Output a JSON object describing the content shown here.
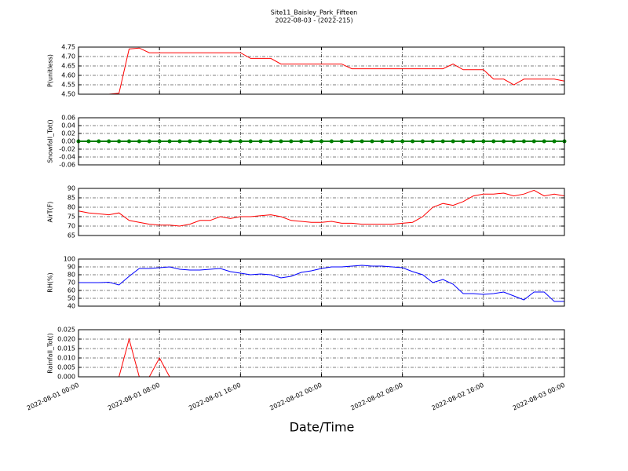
{
  "chart_data": [
    {
      "type": "line",
      "title": "Site11_Baisley_Park_Fifteen",
      "subtitle": "2022-08-03 - (2022-215)",
      "ylabel": "P(unitless)",
      "grid": true,
      "marker": false,
      "xlim": [
        "2022-08-01 00:00",
        "2022-08-03 00:00"
      ],
      "xticks": [
        "2022-08-01 00:00",
        "2022-08-01 08:00",
        "2022-08-01 16:00",
        "2022-08-02 00:00",
        "2022-08-02 08:00",
        "2022-08-02 16:00",
        "2022-08-03 00:00"
      ],
      "ylim": [
        4.5,
        4.75
      ],
      "yticks": [
        {
          "value": 4.5,
          "label": "4.50"
        },
        {
          "value": 4.55,
          "label": "4.55"
        },
        {
          "value": 4.6,
          "label": "4.60"
        },
        {
          "value": 4.65,
          "label": "4.65"
        },
        {
          "value": 4.7,
          "label": "4.70"
        },
        {
          "value": 4.75,
          "label": "4.75"
        }
      ],
      "series": [
        {
          "name": "P",
          "color": "#ff0000",
          "values": [
            4.5,
            4.5,
            4.5,
            4.5,
            4.505,
            4.74,
            4.745,
            4.72,
            4.72,
            4.72,
            4.72,
            4.72,
            4.72,
            4.72,
            4.72,
            4.72,
            4.72,
            4.69,
            4.69,
            4.69,
            4.66,
            4.66,
            4.66,
            4.66,
            4.66,
            4.66,
            4.66,
            4.635,
            4.635,
            4.635,
            4.635,
            4.635,
            4.635,
            4.635,
            4.635,
            4.635,
            4.635,
            4.66,
            4.63,
            4.63,
            4.63,
            4.58,
            4.58,
            4.55,
            4.58,
            4.58,
            4.58,
            4.58,
            4.57
          ]
        }
      ]
    },
    {
      "type": "line",
      "ylabel": "Snowfall_Tot()",
      "grid": true,
      "marker": true,
      "xlim": [
        "2022-08-01 00:00",
        "2022-08-03 00:00"
      ],
      "xticks": [
        "2022-08-01 00:00",
        "2022-08-01 08:00",
        "2022-08-01 16:00",
        "2022-08-02 00:00",
        "2022-08-02 08:00",
        "2022-08-02 16:00",
        "2022-08-03 00:00"
      ],
      "ylim": [
        -0.06,
        0.06
      ],
      "yticks": [
        {
          "value": -0.06,
          "label": "-0.06"
        },
        {
          "value": -0.04,
          "label": "-0.04"
        },
        {
          "value": -0.02,
          "label": "-0.02"
        },
        {
          "value": 0,
          "label": "0.00"
        },
        {
          "value": 0.02,
          "label": "0.02"
        },
        {
          "value": 0.04,
          "label": "0.04"
        },
        {
          "value": 0.06,
          "label": "0.06"
        }
      ],
      "series": [
        {
          "name": "Snowfall_Tot",
          "color": "#008000",
          "values": [
            0,
            0,
            0,
            0,
            0,
            0,
            0,
            0,
            0,
            0,
            0,
            0,
            0,
            0,
            0,
            0,
            0,
            0,
            0,
            0,
            0,
            0,
            0,
            0,
            0,
            0,
            0,
            0,
            0,
            0,
            0,
            0,
            0,
            0,
            0,
            0,
            0,
            0,
            0,
            0,
            0,
            0,
            0,
            0,
            0,
            0,
            0,
            0,
            0
          ]
        }
      ]
    },
    {
      "type": "line",
      "ylabel": "AirT(F)",
      "grid": true,
      "marker": false,
      "xlim": [
        "2022-08-01 00:00",
        "2022-08-03 00:00"
      ],
      "xticks": [
        "2022-08-01 00:00",
        "2022-08-01 08:00",
        "2022-08-01 16:00",
        "2022-08-02 00:00",
        "2022-08-02 08:00",
        "2022-08-02 16:00",
        "2022-08-03 00:00"
      ],
      "ylim": [
        65,
        90
      ],
      "yticks": [
        65,
        70,
        75,
        80,
        85,
        90
      ],
      "series": [
        {
          "name": "AirT",
          "color": "#ff0000",
          "values": [
            78,
            77,
            76.5,
            76,
            77,
            73,
            72,
            71,
            70.5,
            70.5,
            70,
            71,
            73,
            73,
            75,
            74,
            75,
            75,
            75.5,
            76,
            75,
            73,
            72.5,
            72,
            72,
            72.5,
            71.5,
            71.5,
            71,
            71,
            71,
            71,
            71.5,
            72,
            75,
            80,
            82,
            81,
            83,
            86,
            87,
            87,
            87.5,
            86,
            87,
            89,
            86,
            87,
            86
          ]
        }
      ]
    },
    {
      "type": "line",
      "ylabel": "RH(%)",
      "grid": true,
      "marker": false,
      "xlim": [
        "2022-08-01 00:00",
        "2022-08-03 00:00"
      ],
      "xticks": [
        "2022-08-01 00:00",
        "2022-08-01 08:00",
        "2022-08-01 16:00",
        "2022-08-02 00:00",
        "2022-08-02 08:00",
        "2022-08-02 16:00",
        "2022-08-03 00:00"
      ],
      "ylim": [
        40,
        100
      ],
      "yticks": [
        40,
        50,
        60,
        70,
        80,
        90,
        100
      ],
      "series": [
        {
          "name": "RH",
          "color": "#0000ff",
          "values": [
            70,
            70,
            70,
            70.5,
            67,
            78,
            88,
            88,
            89,
            90,
            87,
            86,
            86,
            87,
            88,
            84,
            82,
            80,
            81,
            80,
            76,
            78,
            83,
            85,
            88,
            90,
            90,
            91,
            92,
            91,
            91,
            90,
            89,
            84,
            80,
            70,
            74,
            68,
            56,
            56,
            55,
            56,
            58,
            53,
            48,
            58,
            58,
            46,
            46
          ]
        }
      ]
    },
    {
      "type": "line",
      "ylabel": "Rainfall_Tot()",
      "xlabel": "Date/Time",
      "grid": true,
      "marker": false,
      "xlim": [
        "2022-08-01 00:00",
        "2022-08-03 00:00"
      ],
      "xticks": [
        "2022-08-01 00:00",
        "2022-08-01 08:00",
        "2022-08-01 16:00",
        "2022-08-02 00:00",
        "2022-08-02 08:00",
        "2022-08-02 16:00",
        "2022-08-03 00:00"
      ],
      "ylim": [
        0,
        0.025
      ],
      "yticks": [
        {
          "value": 0,
          "label": "0.000"
        },
        {
          "value": 0.005,
          "label": "0.005"
        },
        {
          "value": 0.01,
          "label": "0.010"
        },
        {
          "value": 0.015,
          "label": "0.015"
        },
        {
          "value": 0.02,
          "label": "0.020"
        },
        {
          "value": 0.025,
          "label": "0.025"
        }
      ],
      "series": [
        {
          "name": "Rainfall_Tot",
          "color": "#ff0000",
          "values": [
            0,
            0,
            0,
            0,
            0,
            0.02,
            0,
            0,
            0.01,
            0,
            0,
            0,
            0,
            0,
            0,
            0,
            0,
            0,
            0,
            0,
            0,
            0,
            0,
            0,
            0,
            0,
            0,
            0,
            0,
            0,
            0,
            0,
            0,
            0,
            0,
            0,
            0,
            0,
            0,
            0,
            0,
            0,
            0,
            0,
            0,
            0,
            0,
            0,
            0
          ]
        }
      ]
    }
  ]
}
